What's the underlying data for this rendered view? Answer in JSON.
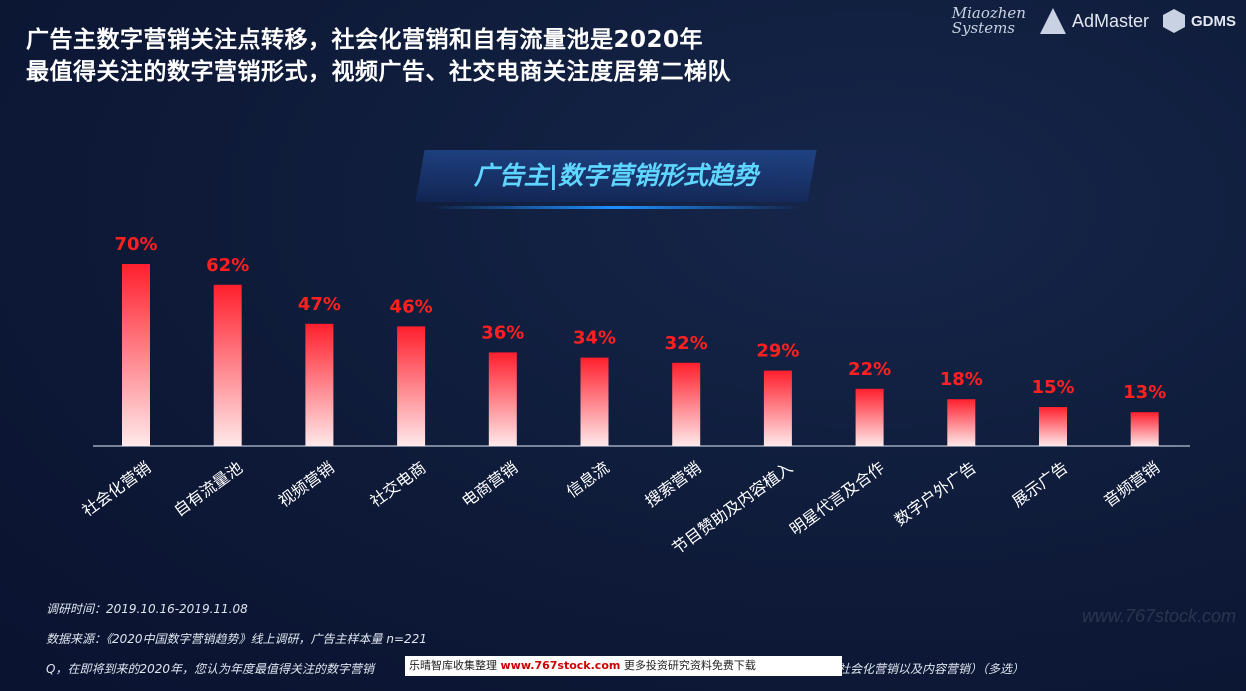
{
  "headline": {
    "line1": "广告主数字营销关注点转移，社会化营销和自有流量池是2020年",
    "line2": "最值得关注的数字营销形式，视频广告、社交电商关注度居第二梯队"
  },
  "logos": {
    "miaozhen_line1": "Miaozhen",
    "miaozhen_line2": "Systems",
    "admaster": "AdMaster",
    "gdms": "GDMS"
  },
  "chart_data": {
    "type": "bar",
    "title": "广告主|数字营销形式趋势",
    "categories": [
      "社会化营销",
      "自有流量池",
      "视频营销",
      "社交电商",
      "电商营销",
      "信息流",
      "搜索营销",
      "节目赞助及内容植入",
      "明星代言及合作",
      "数字户外广告",
      "展示广告",
      "音频营销"
    ],
    "values": [
      70,
      62,
      47,
      46,
      36,
      34,
      32,
      29,
      22,
      18,
      15,
      13
    ],
    "value_labels": [
      "70%",
      "62%",
      "47%",
      "46%",
      "36%",
      "34%",
      "32%",
      "29%",
      "22%",
      "18%",
      "15%",
      "13%"
    ],
    "unit": "%",
    "ylim": [
      0,
      100
    ],
    "grid": false,
    "colors": {
      "bar_top": "#ff1f2d",
      "bar_bottom": "#ffe9ea",
      "label": "#ff2020"
    }
  },
  "footer": {
    "survey_time": "调研时间：2019.10.16-2019.11.08",
    "data_source": "数据来源：《2020中国数字营销趋势》线上调研，广告主样本量 n=221",
    "question_start": "Q，在即将到来的2020年，您认为年度最值得关注的数字营销",
    "question_end": "字硬广、社会化营销以及内容营销）（多选）"
  },
  "watermark": {
    "prefix": "乐晴智库收集整理 ",
    "url": "www.767stock.com",
    "suffix": " 更多投资研究资料免费下载"
  },
  "faint_url": "www.767stock.com"
}
